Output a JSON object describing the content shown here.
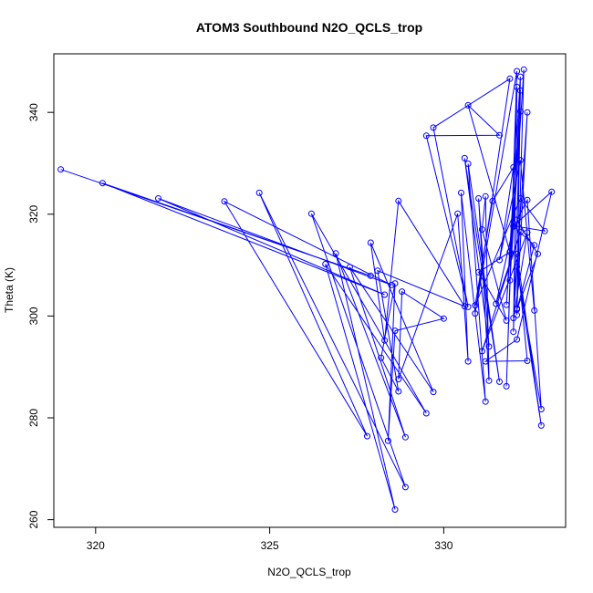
{
  "chart_data": {
    "type": "line",
    "title": "ATOM3 Southbound N2O_QCLS_trop",
    "xlabel": "N2O_QCLS_trop",
    "ylabel": "Theta (K)",
    "xlim": [
      318.8,
      333.5
    ],
    "ylim": [
      258.5,
      351.5
    ],
    "xticks": [
      320,
      325,
      330
    ],
    "yticks": [
      260,
      280,
      300,
      320,
      340
    ],
    "grid": false,
    "legend": "none",
    "colors": {
      "series": "#0000ff"
    },
    "series": [
      {
        "marker": "circle",
        "line": true,
        "points": [
          [
            319.0,
            328.8
          ],
          [
            327.9,
            307.9
          ],
          [
            320.2,
            326.1
          ],
          [
            328.3,
            304.2
          ],
          [
            321.8,
            323.1
          ],
          [
            328.5,
            306.1
          ],
          [
            323.7,
            322.5
          ],
          [
            327.8,
            276.4
          ],
          [
            324.7,
            324.2
          ],
          [
            328.9,
            266.4
          ],
          [
            326.2,
            320.1
          ],
          [
            329.5,
            280.9
          ],
          [
            326.6,
            310.2
          ],
          [
            328.6,
            262.0
          ],
          [
            326.9,
            312.3
          ],
          [
            328.9,
            276.2
          ],
          [
            327.3,
            309.6
          ],
          [
            329.7,
            285.1
          ],
          [
            327.9,
            314.4
          ],
          [
            328.3,
            295.2
          ],
          [
            328.7,
            322.6
          ],
          [
            330.6,
            301.9
          ],
          [
            328.1,
            308.9
          ],
          [
            328.7,
            285.2
          ],
          [
            328.2,
            291.8
          ],
          [
            328.6,
            306.4
          ],
          [
            328.4,
            275.5
          ],
          [
            328.6,
            297.1
          ],
          [
            330.0,
            299.5
          ],
          [
            328.8,
            304.8
          ],
          [
            328.7,
            287.6
          ],
          [
            330.4,
            320.1
          ],
          [
            330.7,
            291.1
          ],
          [
            330.5,
            324.2
          ],
          [
            331.2,
            283.2
          ],
          [
            330.7,
            329.9
          ],
          [
            331.6,
            287.1
          ],
          [
            330.6,
            331.0
          ],
          [
            331.3,
            294.0
          ],
          [
            331.0,
            323.1
          ],
          [
            331.3,
            287.3
          ],
          [
            331.2,
            323.5
          ],
          [
            331.1,
            317.0
          ],
          [
            331.8,
            299.1
          ],
          [
            331.0,
            308.6
          ],
          [
            331.9,
            312.6
          ],
          [
            330.7,
            341.4
          ],
          [
            331.6,
            335.5
          ],
          [
            329.5,
            335.4
          ],
          [
            330.7,
            301.8
          ],
          [
            329.7,
            337.0
          ],
          [
            331.9,
            346.6
          ],
          [
            330.9,
            300.5
          ],
          [
            332.1,
            348.1
          ],
          [
            331.8,
            286.2
          ],
          [
            332.1,
            345.0
          ],
          [
            332.0,
            296.9
          ],
          [
            332.2,
            340.2
          ],
          [
            331.8,
            302.2
          ],
          [
            332.2,
            347.0
          ],
          [
            332.1,
            300.2
          ],
          [
            332.3,
            348.4
          ],
          [
            331.9,
            307.0
          ],
          [
            332.2,
            344.3
          ],
          [
            332.1,
            301.5
          ],
          [
            332.4,
            340.0
          ],
          [
            332.0,
            299.6
          ],
          [
            332.4,
            316.4
          ],
          [
            331.1,
            293.1
          ],
          [
            332.2,
            316.5
          ],
          [
            331.5,
            302.4
          ],
          [
            332.0,
            317.6
          ],
          [
            332.6,
            313.9
          ],
          [
            332.1,
            301.3
          ],
          [
            332.7,
            312.2
          ],
          [
            332.1,
            318.9
          ],
          [
            332.4,
            322.8
          ],
          [
            332.8,
            281.7
          ],
          [
            332.1,
            309.7
          ],
          [
            332.8,
            278.5
          ],
          [
            332.1,
            312.2
          ],
          [
            332.4,
            291.2
          ],
          [
            331.2,
            291.1
          ],
          [
            332.1,
            295.4
          ],
          [
            333.1,
            324.4
          ],
          [
            332.0,
            317.7
          ],
          [
            332.9,
            316.7
          ],
          [
            332.2,
            323.1
          ],
          [
            330.9,
            302.1
          ],
          [
            331.4,
            322.6
          ],
          [
            332.0,
            329.2
          ],
          [
            331.6,
            311.0
          ],
          [
            332.2,
            330.6
          ],
          [
            332.6,
            301.1
          ]
        ]
      }
    ]
  }
}
